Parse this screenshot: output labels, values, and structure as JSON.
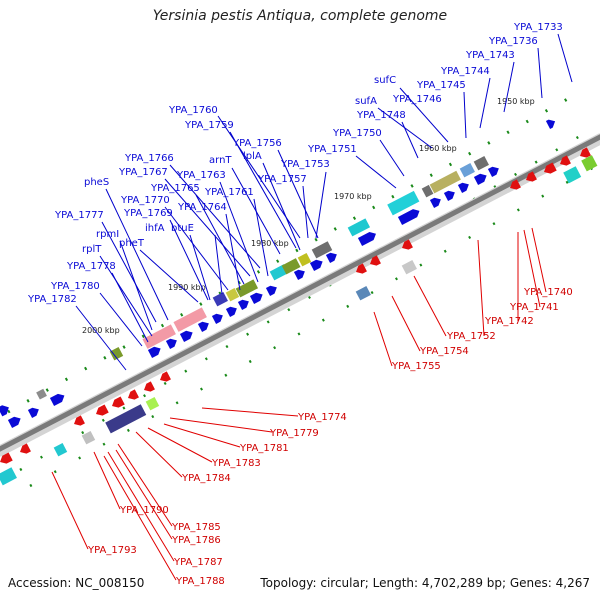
{
  "title": "Yersinia pestis Antiqua, complete genome",
  "accession": "Accession: NC_008150",
  "stats": "Topology: circular; Length: 4,702,289 bp; Genes: 4,267",
  "colors": {
    "forward": "#0a0ad6",
    "reverse": "#e01010",
    "backbone": "#808080",
    "tick": "#1a8a1a"
  },
  "kbp_ticks": [
    "1950 kbp",
    "1960 kbp",
    "1970 kbp",
    "1980 kbp",
    "1990 kbp",
    "2000 kbp"
  ],
  "forward_labels": [
    "YPA_1733",
    "YPA_1736",
    "YPA_1743",
    "YPA_1744",
    "sufC",
    "YPA_1745",
    "sufA",
    "YPA_1746",
    "YPA_1748",
    "YPA_1750",
    "YPA_1751",
    "YPA_1760",
    "YPA_1759",
    "YPA_1756",
    "lplA",
    "arnT",
    "YPA_1757",
    "YPA_1753",
    "YPA_1766",
    "YPA_1767",
    "YPA_1763",
    "YPA_1765",
    "YPA_1761",
    "pheS",
    "YPA_1770",
    "YPA_1764",
    "YPA_1777",
    "YPA_1769",
    "ihfA",
    "btuE",
    "rpmI",
    "rplT",
    "pheT",
    "YPA_1778",
    "YPA_1780",
    "YPA_1782"
  ],
  "reverse_labels": [
    "YPA_1740",
    "YPA_1741",
    "YPA_1742",
    "YPA_1752",
    "YPA_1754",
    "YPA_1755",
    "YPA_1774",
    "YPA_1779",
    "YPA_1781",
    "YPA_1783",
    "YPA_1784",
    "YPA_1790",
    "YPA_1785",
    "YPA_1786",
    "YPA_1793",
    "YPA_1787",
    "YPA_1788"
  ]
}
